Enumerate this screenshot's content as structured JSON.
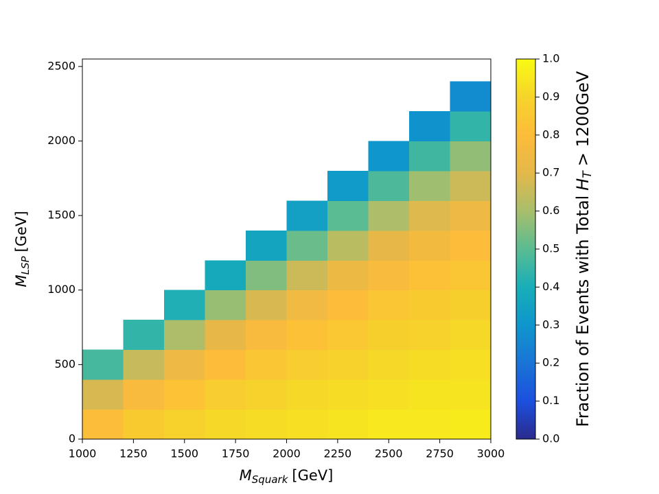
{
  "chart_data": {
    "type": "heatmap",
    "xlabel": {
      "symbol": "M",
      "subscript": "Squark",
      "unit": "[GeV]"
    },
    "ylabel": {
      "symbol": "M",
      "subscript": "LSP",
      "unit": "[GeV]"
    },
    "colorbar_label": {
      "text": "Fraction of Events with Total",
      "symbol": "H",
      "subscript": "T",
      "tail": "> 1200GeV"
    },
    "xlim": [
      1000,
      3000
    ],
    "ylim": [
      0,
      2550
    ],
    "xticks": [
      1000,
      1250,
      1500,
      1750,
      2000,
      2250,
      2500,
      2750,
      3000
    ],
    "yticks": [
      0,
      500,
      1000,
      1500,
      2000,
      2500
    ],
    "x_edges": [
      1000,
      1200,
      1400,
      1600,
      1800,
      2000,
      2200,
      2400,
      2600,
      2800,
      3000
    ],
    "y_edges": [
      0,
      200,
      400,
      600,
      800,
      1000,
      1200,
      1400,
      1600,
      1800,
      2000,
      2200,
      2400
    ],
    "z": [
      [
        0.81,
        0.86,
        0.89,
        0.91,
        0.92,
        0.93,
        0.94,
        0.95,
        0.95,
        0.96
      ],
      [
        0.68,
        0.78,
        0.83,
        0.87,
        0.89,
        0.91,
        0.92,
        0.93,
        0.94,
        0.94
      ],
      [
        0.47,
        0.65,
        0.74,
        0.8,
        0.84,
        0.87,
        0.89,
        0.91,
        0.92,
        0.93
      ],
      [
        null,
        0.44,
        0.61,
        0.71,
        0.78,
        0.82,
        0.85,
        0.88,
        0.89,
        0.91
      ],
      [
        null,
        null,
        0.41,
        0.58,
        0.68,
        0.75,
        0.8,
        0.84,
        0.86,
        0.88
      ],
      [
        null,
        null,
        null,
        0.38,
        0.55,
        0.66,
        0.73,
        0.78,
        0.82,
        0.84
      ],
      [
        null,
        null,
        null,
        null,
        0.36,
        0.52,
        0.63,
        0.71,
        0.76,
        0.8
      ],
      [
        null,
        null,
        null,
        null,
        null,
        0.34,
        0.5,
        0.61,
        0.69,
        0.74
      ],
      [
        null,
        null,
        null,
        null,
        null,
        null,
        0.32,
        0.48,
        0.59,
        0.66
      ],
      [
        null,
        null,
        null,
        null,
        null,
        null,
        null,
        0.3,
        0.46,
        0.57
      ],
      [
        null,
        null,
        null,
        null,
        null,
        null,
        null,
        null,
        0.29,
        0.44
      ],
      [
        null,
        null,
        null,
        null,
        null,
        null,
        null,
        null,
        null,
        0.27
      ]
    ],
    "clim": [
      0,
      1
    ],
    "cticks": [
      {
        "value": 0,
        "label": "0.0"
      },
      {
        "value": 0.1,
        "label": "0.1"
      },
      {
        "value": 0.2,
        "label": "0.2"
      },
      {
        "value": 0.3,
        "label": "0.3"
      },
      {
        "value": 0.4,
        "label": "0.4"
      },
      {
        "value": 0.5,
        "label": "0.5"
      },
      {
        "value": 0.6,
        "label": "0.6"
      },
      {
        "value": 0.7,
        "label": "0.7"
      },
      {
        "value": 0.8,
        "label": "0.8"
      },
      {
        "value": 0.9,
        "label": "0.9"
      },
      {
        "value": 1,
        "label": "1.0"
      }
    ],
    "colormap": [
      "#2b2a8c",
      "#1b50de",
      "#1a74d6",
      "#0f96cc",
      "#18aeb8",
      "#5abc92",
      "#a8be6c",
      "#e4b84a",
      "#fdbc3a",
      "#f6d42a",
      "#f9fb12"
    ]
  }
}
